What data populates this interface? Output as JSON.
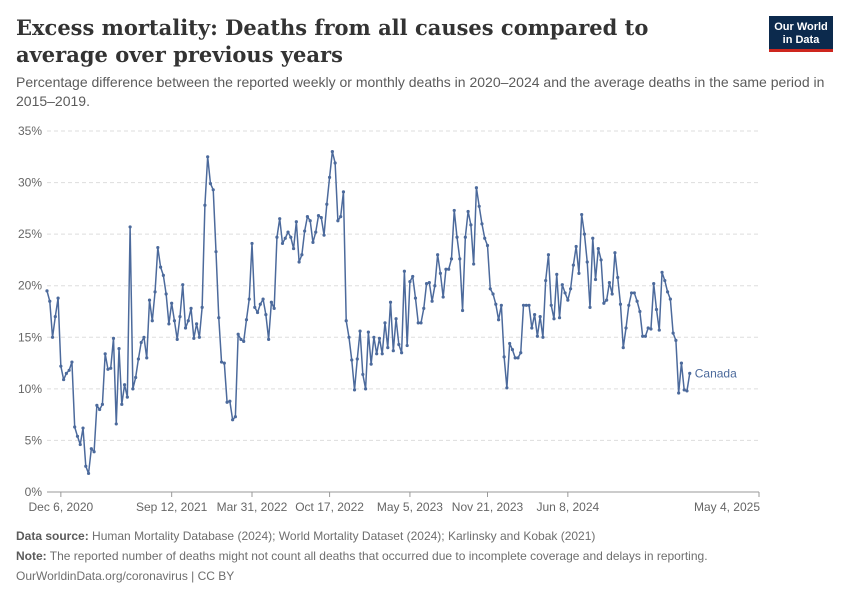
{
  "header": {
    "title": "Excess mortality: Deaths from all causes compared to average over previous years",
    "subtitle": "Percentage difference between the reported weekly or monthly deaths in 2020–2024 and the average deaths in the same period in 2015–2019.",
    "logo_line1": "Our World",
    "logo_line2": "in Data"
  },
  "footer": {
    "source_label": "Data source:",
    "source_text": "Human Mortality Database (2024); World Mortality Dataset (2024); Karlinsky and Kobak (2021)",
    "note_label": "Note:",
    "note_text": "The reported number of deaths might not count all deaths that occurred due to incomplete coverage and delays in reporting.",
    "link_text": "OurWorldinData.org/coronavirus | CC BY"
  },
  "colors": {
    "series": "#4c6a9c",
    "grid": "#dddddd",
    "axis": "#999999",
    "tick_text": "#666666"
  },
  "chart_data": {
    "type": "line",
    "title": "Excess mortality: Deaths from all causes compared to average over previous years",
    "ylim": [
      0,
      35
    ],
    "yticks": [
      0,
      5,
      10,
      15,
      20,
      25,
      30,
      35
    ],
    "ytick_labels": [
      "0%",
      "5%",
      "10%",
      "15%",
      "20%",
      "25%",
      "30%",
      "35%"
    ],
    "ytick_suffix": "%",
    "xlim": [
      0,
      257
    ],
    "xticks": [
      {
        "x": 5,
        "label": "Dec 6, 2020"
      },
      {
        "x": 45,
        "label": "Sep 12, 2021"
      },
      {
        "x": 74,
        "label": "Mar 31, 2022"
      },
      {
        "x": 102,
        "label": "Oct 17, 2022"
      },
      {
        "x": 131,
        "label": "May 5, 2023"
      },
      {
        "x": 159,
        "label": "Nov 21, 2023"
      },
      {
        "x": 188,
        "label": "Jun 8, 2024"
      },
      {
        "x": 257,
        "label": "May 4, 2025"
      }
    ],
    "grid": true,
    "legend": "end-of-line label",
    "series": [
      {
        "name": "Canada",
        "values": [
          19.5,
          18.5,
          15.0,
          17.0,
          18.8,
          12.2,
          10.9,
          11.5,
          11.8,
          12.6,
          6.3,
          5.4,
          4.6,
          6.2,
          2.5,
          1.8,
          4.2,
          3.9,
          8.4,
          8.0,
          8.5,
          13.4,
          11.9,
          12.0,
          14.9,
          6.6,
          13.9,
          8.5,
          10.4,
          9.2,
          25.7,
          10.0,
          11.1,
          12.9,
          14.5,
          15.0,
          13.0,
          18.6,
          16.6,
          19.4,
          23.7,
          21.8,
          21.0,
          19.2,
          16.3,
          18.3,
          16.6,
          14.8,
          17.0,
          20.1,
          15.9,
          16.6,
          17.8,
          14.9,
          16.3,
          15.0,
          17.9,
          27.8,
          32.5,
          29.9,
          29.3,
          23.3,
          16.9,
          12.6,
          12.5,
          8.7,
          8.8,
          7.0,
          7.3,
          15.3,
          14.8,
          14.6,
          16.7,
          18.7,
          24.1,
          17.9,
          17.4,
          18.2,
          18.7,
          17.2,
          14.8,
          18.4,
          17.8,
          24.7,
          26.5,
          24.1,
          24.6,
          25.2,
          24.7,
          23.6,
          26.2,
          22.3,
          23.0,
          25.3,
          26.7,
          26.3,
          24.2,
          25.2,
          26.8,
          26.6,
          24.9,
          27.9,
          30.5,
          33.0,
          31.9,
          26.3,
          26.7,
          29.1,
          16.6,
          15.0,
          12.8,
          9.9,
          12.9,
          15.6,
          11.4,
          10.0,
          15.5,
          12.4,
          15.0,
          13.4,
          14.9,
          13.4,
          16.4,
          14.0,
          18.4,
          13.7,
          16.8,
          14.3,
          13.5,
          21.4,
          14.2,
          20.4,
          20.9,
          18.8,
          16.4,
          16.4,
          17.8,
          20.2,
          20.3,
          18.5,
          20.0,
          23.0,
          21.2,
          18.9,
          21.6,
          21.6,
          22.6,
          27.3,
          24.7,
          22.6,
          17.6,
          24.7,
          27.2,
          25.9,
          22.1,
          29.5,
          27.7,
          26.0,
          24.6,
          23.9,
          19.7,
          19.2,
          18.2,
          16.7,
          18.1,
          13.1,
          10.1,
          14.4,
          13.8,
          13.0,
          13.0,
          13.5,
          18.1,
          18.1,
          18.1,
          15.9,
          17.2,
          15.1,
          17.0,
          15.0,
          20.5,
          23.0,
          18.1,
          16.8,
          21.1,
          16.9,
          20.1,
          19.3,
          18.6,
          19.7,
          22.0,
          23.8,
          21.2,
          26.9,
          25.0,
          22.3,
          17.9,
          24.6,
          20.6,
          23.6,
          22.5,
          18.3,
          18.6,
          20.3,
          19.2,
          23.2,
          20.8,
          18.2,
          14.0,
          15.9,
          18.1,
          19.3,
          19.3,
          18.5,
          17.5,
          15.1,
          15.1,
          15.9,
          15.8,
          20.2,
          17.7,
          15.7,
          21.3,
          20.5,
          19.4,
          18.7,
          15.4,
          14.7,
          9.6,
          12.5,
          9.9,
          9.8,
          11.5
        ]
      }
    ]
  }
}
